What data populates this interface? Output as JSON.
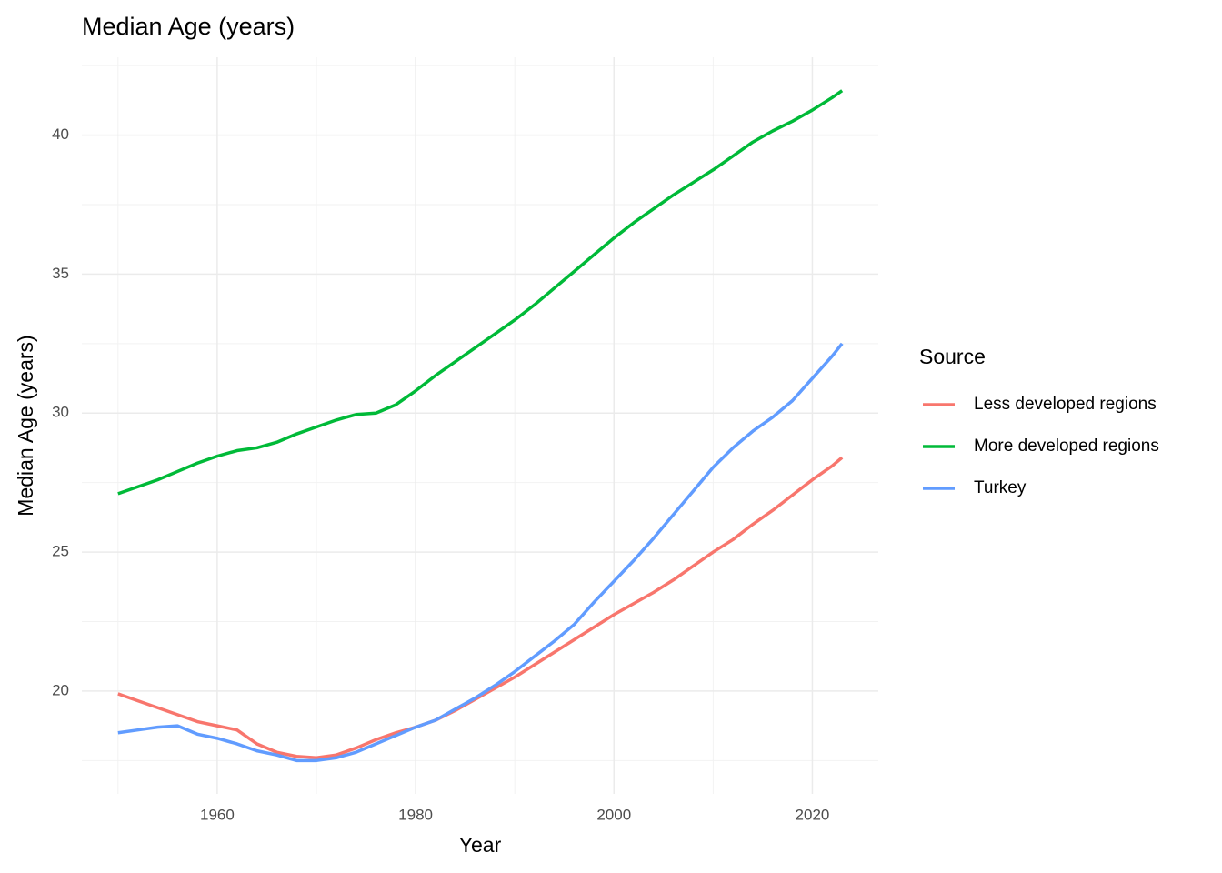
{
  "chart_data": {
    "type": "line",
    "title": "Median Age (years)",
    "x_label": "Year",
    "y_label": "Median Age (years)",
    "legend_title": "Source",
    "legend_position": "right",
    "grid": true,
    "x": [
      1950,
      1952,
      1954,
      1956,
      1958,
      1960,
      1962,
      1964,
      1966,
      1968,
      1970,
      1972,
      1974,
      1976,
      1978,
      1980,
      1982,
      1984,
      1986,
      1988,
      1990,
      1992,
      1994,
      1996,
      1998,
      2000,
      2002,
      2004,
      2006,
      2008,
      2010,
      2012,
      2014,
      2016,
      2018,
      2020,
      2022,
      2023
    ],
    "series": [
      {
        "name": "Less developed regions",
        "color": "#f8766d",
        "values": [
          19.9,
          19.65,
          19.4,
          19.15,
          18.9,
          18.75,
          18.6,
          18.1,
          17.8,
          17.65,
          17.6,
          17.7,
          17.95,
          18.25,
          18.5,
          18.7,
          18.95,
          19.3,
          19.7,
          20.1,
          20.5,
          20.95,
          21.4,
          21.85,
          22.3,
          22.75,
          23.15,
          23.55,
          24.0,
          24.5,
          25.0,
          25.45,
          26.0,
          26.5,
          27.05,
          27.6,
          28.1,
          28.4
        ]
      },
      {
        "name": "More developed regions",
        "color": "#00ba38",
        "values": [
          27.1,
          27.35,
          27.6,
          27.9,
          28.2,
          28.45,
          28.65,
          28.75,
          28.95,
          29.25,
          29.5,
          29.75,
          29.95,
          30.0,
          30.3,
          30.8,
          31.35,
          31.85,
          32.35,
          32.85,
          33.35,
          33.9,
          34.5,
          35.1,
          35.7,
          36.3,
          36.85,
          37.35,
          37.85,
          38.3,
          38.75,
          39.25,
          39.75,
          40.15,
          40.5,
          40.9,
          41.35,
          41.6
        ]
      },
      {
        "name": "Turkey",
        "color": "#619cff",
        "values": [
          18.5,
          18.6,
          18.7,
          18.75,
          18.45,
          18.3,
          18.1,
          17.85,
          17.7,
          17.5,
          17.5,
          17.6,
          17.8,
          18.1,
          18.4,
          18.7,
          18.95,
          19.35,
          19.75,
          20.2,
          20.7,
          21.25,
          21.8,
          22.4,
          23.2,
          23.95,
          24.7,
          25.5,
          26.35,
          27.2,
          28.05,
          28.75,
          29.35,
          29.85,
          30.45,
          31.25,
          32.05,
          32.5
        ]
      }
    ],
    "xlim": [
      1946.35,
      2026.65
    ],
    "xticks": [
      1960,
      1980,
      2000,
      2020
    ],
    "ylim": [
      16.3,
      42.8
    ],
    "yticks": [
      20,
      25,
      30,
      35,
      40
    ]
  }
}
